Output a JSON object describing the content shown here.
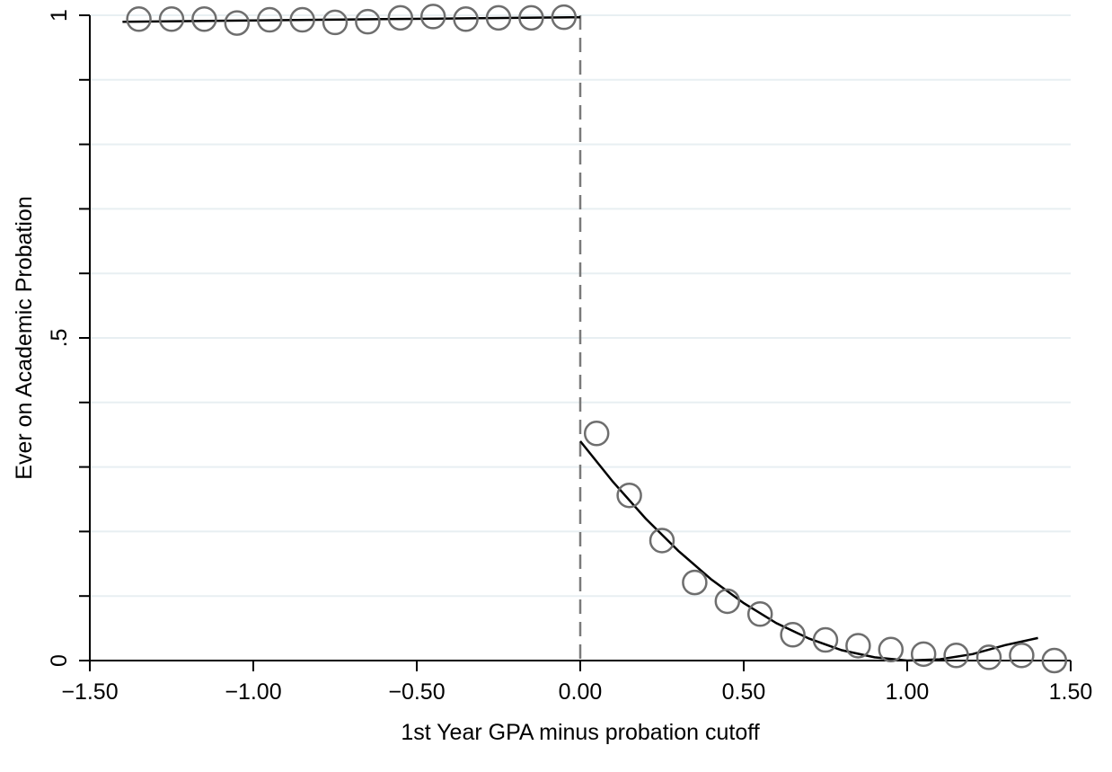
{
  "chart_data": {
    "type": "scatter",
    "title": "",
    "xlabel": "1st Year GPA minus probation cutoff",
    "ylabel": "Ever on Academic Probation",
    "xlim": [
      -1.5,
      1.5
    ],
    "ylim": [
      0,
      1
    ],
    "x_ticks": [
      -1.5,
      -1.0,
      -0.5,
      0.0,
      0.5,
      1.0,
      1.5
    ],
    "x_tick_labels": [
      "−1.50",
      "−1.00",
      "−0.50",
      "0.00",
      "0.50",
      "1.00",
      "1.50"
    ],
    "y_ticks": [
      0,
      0.1,
      0.2,
      0.3,
      0.4,
      0.5,
      0.6,
      0.7,
      0.8,
      0.9,
      1.0
    ],
    "y_tick_labels": [
      "0",
      "",
      "",
      "",
      "",
      ".5",
      "",
      "",
      "",
      "",
      "1"
    ],
    "grid": true,
    "cutoff_x": 0.0,
    "series": [
      {
        "kind": "binned_means",
        "marker": "hollow-circle",
        "color": "#6e6e6e",
        "x": [
          -1.35,
          -1.25,
          -1.15,
          -1.05,
          -0.95,
          -0.85,
          -0.75,
          -0.65,
          -0.55,
          -0.45,
          -0.35,
          -0.25,
          -0.15,
          -0.05,
          0.05,
          0.15,
          0.25,
          0.35,
          0.45,
          0.55,
          0.65,
          0.75,
          0.85,
          0.95,
          1.05,
          1.15,
          1.25,
          1.35,
          1.45
        ],
        "y": [
          0.994,
          0.994,
          0.994,
          0.988,
          0.993,
          0.993,
          0.989,
          0.99,
          0.996,
          0.998,
          0.994,
          0.996,
          0.996,
          0.997,
          0.352,
          0.256,
          0.186,
          0.121,
          0.092,
          0.072,
          0.04,
          0.032,
          0.023,
          0.017,
          0.01,
          0.008,
          0.005,
          0.008,
          0.0
        ]
      },
      {
        "kind": "fit_left",
        "color": "#000000",
        "x": [
          -1.4,
          -1.2,
          -1.0,
          -0.8,
          -0.6,
          -0.4,
          -0.2,
          0.0
        ],
        "y": [
          0.99,
          0.991,
          0.992,
          0.993,
          0.994,
          0.995,
          0.996,
          0.997
        ]
      },
      {
        "kind": "fit_right",
        "color": "#000000",
        "x": [
          0.0,
          0.1,
          0.2,
          0.3,
          0.4,
          0.5,
          0.6,
          0.7,
          0.8,
          0.9,
          1.0,
          1.1,
          1.2,
          1.3,
          1.4
        ],
        "y": [
          0.34,
          0.277,
          0.22,
          0.17,
          0.126,
          0.089,
          0.058,
          0.034,
          0.016,
          0.005,
          0.0,
          0.002,
          0.01,
          0.024,
          0.035
        ]
      }
    ]
  }
}
